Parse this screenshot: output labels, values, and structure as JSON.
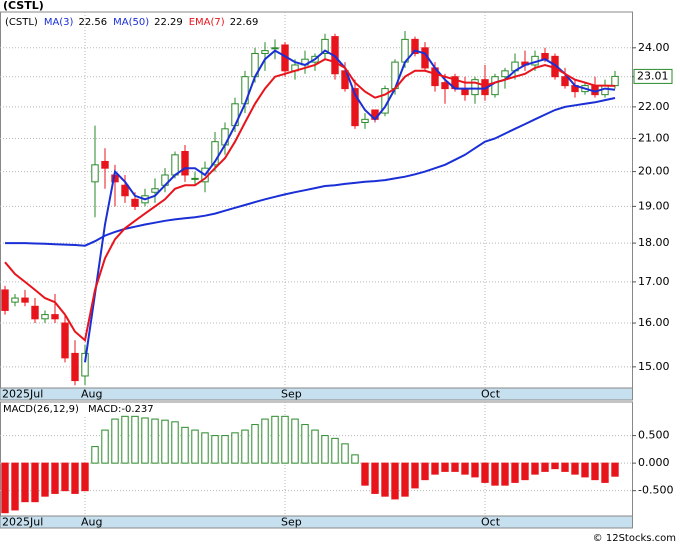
{
  "chart_data": [
    {
      "type": "candlestick",
      "title": "(CSTL)",
      "log_scale": true,
      "grid": true,
      "categories": [
        "2025Jul",
        null,
        null,
        null,
        null,
        null,
        null,
        null,
        "Aug",
        null,
        null,
        null,
        null,
        null,
        null,
        null,
        null,
        null,
        null,
        null,
        null,
        null,
        null,
        null,
        null,
        null,
        null,
        null,
        "Sep",
        null,
        null,
        null,
        null,
        null,
        null,
        null,
        null,
        null,
        null,
        null,
        null,
        null,
        null,
        null,
        null,
        null,
        null,
        null,
        "Oct",
        null,
        null,
        null,
        null,
        null,
        null,
        null,
        null,
        null,
        null,
        null,
        null,
        null
      ],
      "open": [
        16.8,
        16.5,
        16.6,
        16.4,
        16.1,
        16.2,
        16.0,
        15.3,
        14.8,
        19.7,
        20.3,
        19.9,
        19.6,
        19.2,
        19.1,
        19.4,
        19.6,
        19.9,
        20.6,
        19.8,
        19.7,
        20.2,
        20.8,
        21.4,
        22.1,
        23.0,
        23.8,
        24.0,
        24.1,
        23.2,
        23.4,
        23.5,
        23.8,
        24.4,
        23.2,
        22.6,
        21.5,
        21.9,
        21.8,
        22.6,
        23.5,
        24.3,
        24.0,
        23.3,
        22.8,
        23.0,
        22.6,
        22.4,
        22.9,
        22.4,
        23.0,
        23.2,
        23.5,
        23.4,
        23.8,
        23.7,
        23.0,
        22.7,
        22.5,
        22.7,
        22.4,
        22.7
      ],
      "high": [
        16.9,
        16.7,
        16.8,
        16.6,
        16.3,
        16.7,
        16.2,
        15.6,
        15.5,
        21.4,
        20.7,
        20.2,
        19.9,
        19.4,
        19.5,
        19.8,
        20.1,
        20.6,
        20.8,
        20.0,
        20.3,
        21.2,
        21.5,
        22.3,
        23.2,
        24.0,
        24.2,
        24.3,
        24.2,
        23.6,
        23.9,
        23.8,
        24.5,
        24.5,
        23.5,
        22.9,
        21.8,
        21.9,
        22.7,
        23.6,
        24.6,
        24.4,
        24.2,
        23.5,
        23.1,
        23.1,
        23.0,
        23.0,
        23.4,
        23.1,
        23.3,
        23.8,
        23.9,
        23.9,
        24.0,
        23.8,
        23.3,
        22.9,
        22.8,
        23.0,
        22.9,
        23.2
      ],
      "low": [
        16.2,
        16.4,
        16.4,
        16.0,
        16.0,
        16.0,
        15.1,
        14.6,
        14.6,
        18.7,
        19.5,
        19.0,
        19.1,
        18.9,
        19.0,
        19.1,
        19.4,
        19.8,
        19.7,
        19.6,
        19.4,
        20.0,
        20.5,
        21.2,
        21.8,
        22.8,
        23.2,
        23.6,
        23.0,
        22.9,
        23.1,
        23.2,
        23.6,
        22.9,
        22.5,
        21.3,
        21.3,
        21.5,
        21.7,
        22.4,
        23.3,
        23.7,
        23.2,
        22.5,
        22.1,
        22.5,
        22.2,
        22.1,
        22.2,
        22.3,
        22.6,
        22.9,
        23.2,
        23.2,
        23.5,
        22.9,
        22.6,
        22.3,
        22.4,
        22.3,
        22.3,
        22.6
      ],
      "close": [
        16.3,
        16.6,
        16.5,
        16.1,
        16.2,
        16.1,
        15.2,
        14.7,
        15.3,
        20.2,
        20.1,
        19.7,
        19.3,
        19.0,
        19.3,
        19.5,
        19.9,
        20.5,
        19.9,
        19.8,
        20.1,
        20.9,
        21.3,
        22.1,
        23.0,
        23.8,
        23.9,
        24.0,
        23.2,
        23.4,
        23.6,
        23.7,
        24.3,
        23.1,
        22.6,
        21.4,
        21.6,
        21.6,
        22.6,
        23.5,
        24.3,
        23.8,
        23.3,
        22.7,
        22.6,
        22.6,
        22.4,
        22.9,
        22.4,
        23.0,
        23.2,
        23.5,
        23.4,
        23.7,
        23.6,
        23.0,
        22.7,
        22.5,
        22.7,
        22.4,
        22.7,
        23.01
      ],
      "up_color": "#2a8a2a",
      "down_color": "#e8141c",
      "price_label": "23.01",
      "series": [
        {
          "name": "MA(3)",
          "last": 22.56,
          "color": "#1a2fd6",
          "values": [
            null,
            null,
            null,
            null,
            null,
            null,
            null,
            null,
            15.1,
            16.7,
            18.5,
            20.0,
            19.7,
            19.3,
            19.2,
            19.3,
            19.6,
            19.9,
            20.1,
            20.1,
            19.9,
            20.3,
            20.8,
            21.4,
            22.1,
            23.0,
            23.6,
            23.9,
            23.7,
            23.5,
            23.4,
            23.6,
            23.9,
            23.7,
            23.3,
            22.4,
            21.9,
            21.6,
            22.0,
            22.6,
            23.5,
            23.9,
            23.8,
            23.3,
            22.9,
            22.6,
            22.6,
            22.6,
            22.6,
            22.8,
            22.9,
            23.2,
            23.4,
            23.5,
            23.6,
            23.4,
            23.1,
            22.7,
            22.6,
            22.5,
            22.6,
            22.56
          ]
        },
        {
          "name": "MA(50)",
          "last": 22.29,
          "color": "#1a2fd6",
          "values": [
            18.0,
            18.0,
            18.0,
            17.99,
            17.98,
            17.97,
            17.96,
            17.95,
            17.93,
            18.05,
            18.2,
            18.3,
            18.38,
            18.44,
            18.5,
            18.55,
            18.6,
            18.64,
            18.67,
            18.7,
            18.74,
            18.8,
            18.88,
            18.96,
            19.04,
            19.12,
            19.2,
            19.27,
            19.34,
            19.4,
            19.46,
            19.52,
            19.58,
            19.6,
            19.64,
            19.67,
            19.7,
            19.72,
            19.75,
            19.8,
            19.85,
            19.92,
            20.0,
            20.1,
            20.2,
            20.35,
            20.5,
            20.7,
            20.9,
            21.0,
            21.15,
            21.3,
            21.45,
            21.6,
            21.75,
            21.9,
            22.0,
            22.05,
            22.1,
            22.15,
            22.22,
            22.29
          ]
        },
        {
          "name": "EMA(7)",
          "last": 22.69,
          "color": "#e8141c",
          "values": [
            17.5,
            17.2,
            17.0,
            16.8,
            16.6,
            16.5,
            16.2,
            15.8,
            15.6,
            16.8,
            17.6,
            18.1,
            18.4,
            18.6,
            18.8,
            19.0,
            19.2,
            19.5,
            19.6,
            19.6,
            19.8,
            20.1,
            20.4,
            20.9,
            21.5,
            22.1,
            22.6,
            23.0,
            23.1,
            23.2,
            23.3,
            23.4,
            23.6,
            23.5,
            23.3,
            22.8,
            22.5,
            22.3,
            22.4,
            22.6,
            23.0,
            23.2,
            23.2,
            23.1,
            23.0,
            22.9,
            22.8,
            22.8,
            22.7,
            22.8,
            22.9,
            23.0,
            23.1,
            23.3,
            23.4,
            23.3,
            23.1,
            22.9,
            22.8,
            22.7,
            22.7,
            22.69
          ]
        }
      ],
      "ylim": [
        14.54,
        25.3
      ],
      "yticks": [
        {
          "value": 15,
          "label": "15.00"
        },
        {
          "value": 16,
          "label": "16.00"
        },
        {
          "value": 17,
          "label": "17.00"
        },
        {
          "value": 18,
          "label": "18.00"
        },
        {
          "value": 19,
          "label": "19.00"
        },
        {
          "value": 20,
          "label": "20.00"
        },
        {
          "value": 21,
          "label": "21.00"
        },
        {
          "value": 22,
          "label": "22.00"
        },
        {
          "value": 23,
          "label": "23.00"
        },
        {
          "value": 24,
          "label": "24.00"
        }
      ]
    },
    {
      "type": "bar",
      "title": "MACD(26,12,9)",
      "label": "MACD:",
      "last": -0.237,
      "grid": true,
      "categories": [
        "2025Jul",
        null,
        null,
        null,
        null,
        null,
        null,
        null,
        "Aug",
        null,
        null,
        null,
        null,
        null,
        null,
        null,
        null,
        null,
        null,
        null,
        null,
        null,
        null,
        null,
        null,
        null,
        null,
        null,
        "Sep",
        null,
        null,
        null,
        null,
        null,
        null,
        null,
        null,
        null,
        null,
        null,
        null,
        null,
        null,
        null,
        null,
        null,
        null,
        null,
        "Oct",
        null,
        null,
        null,
        null,
        null,
        null,
        null,
        null,
        null,
        null,
        null,
        null,
        null
      ],
      "values": [
        -0.9,
        -0.85,
        -0.7,
        -0.7,
        -0.6,
        -0.55,
        -0.5,
        -0.55,
        -0.5,
        0.3,
        0.6,
        0.8,
        0.85,
        0.85,
        0.82,
        0.8,
        0.78,
        0.75,
        0.65,
        0.6,
        0.55,
        0.5,
        0.5,
        0.55,
        0.6,
        0.7,
        0.8,
        0.85,
        0.85,
        0.8,
        0.7,
        0.6,
        0.5,
        0.45,
        0.35,
        0.15,
        -0.4,
        -0.55,
        -0.6,
        -0.65,
        -0.6,
        -0.45,
        -0.3,
        -0.2,
        -0.15,
        -0.15,
        -0.2,
        -0.25,
        -0.35,
        -0.4,
        -0.4,
        -0.35,
        -0.3,
        -0.2,
        -0.15,
        -0.1,
        -0.15,
        -0.2,
        -0.25,
        -0.3,
        -0.35,
        -0.237
      ],
      "up_color": "#2a8a2a",
      "down_color": "#e8141c",
      "ylim": [
        -0.96,
        1.11
      ],
      "yticks": [
        {
          "value": 0.5,
          "label": "0.500"
        },
        {
          "value": 0,
          "label": "0.000"
        },
        {
          "value": -0.5,
          "label": "-0.500"
        }
      ]
    }
  ],
  "footer": "© 12Stocks.com"
}
